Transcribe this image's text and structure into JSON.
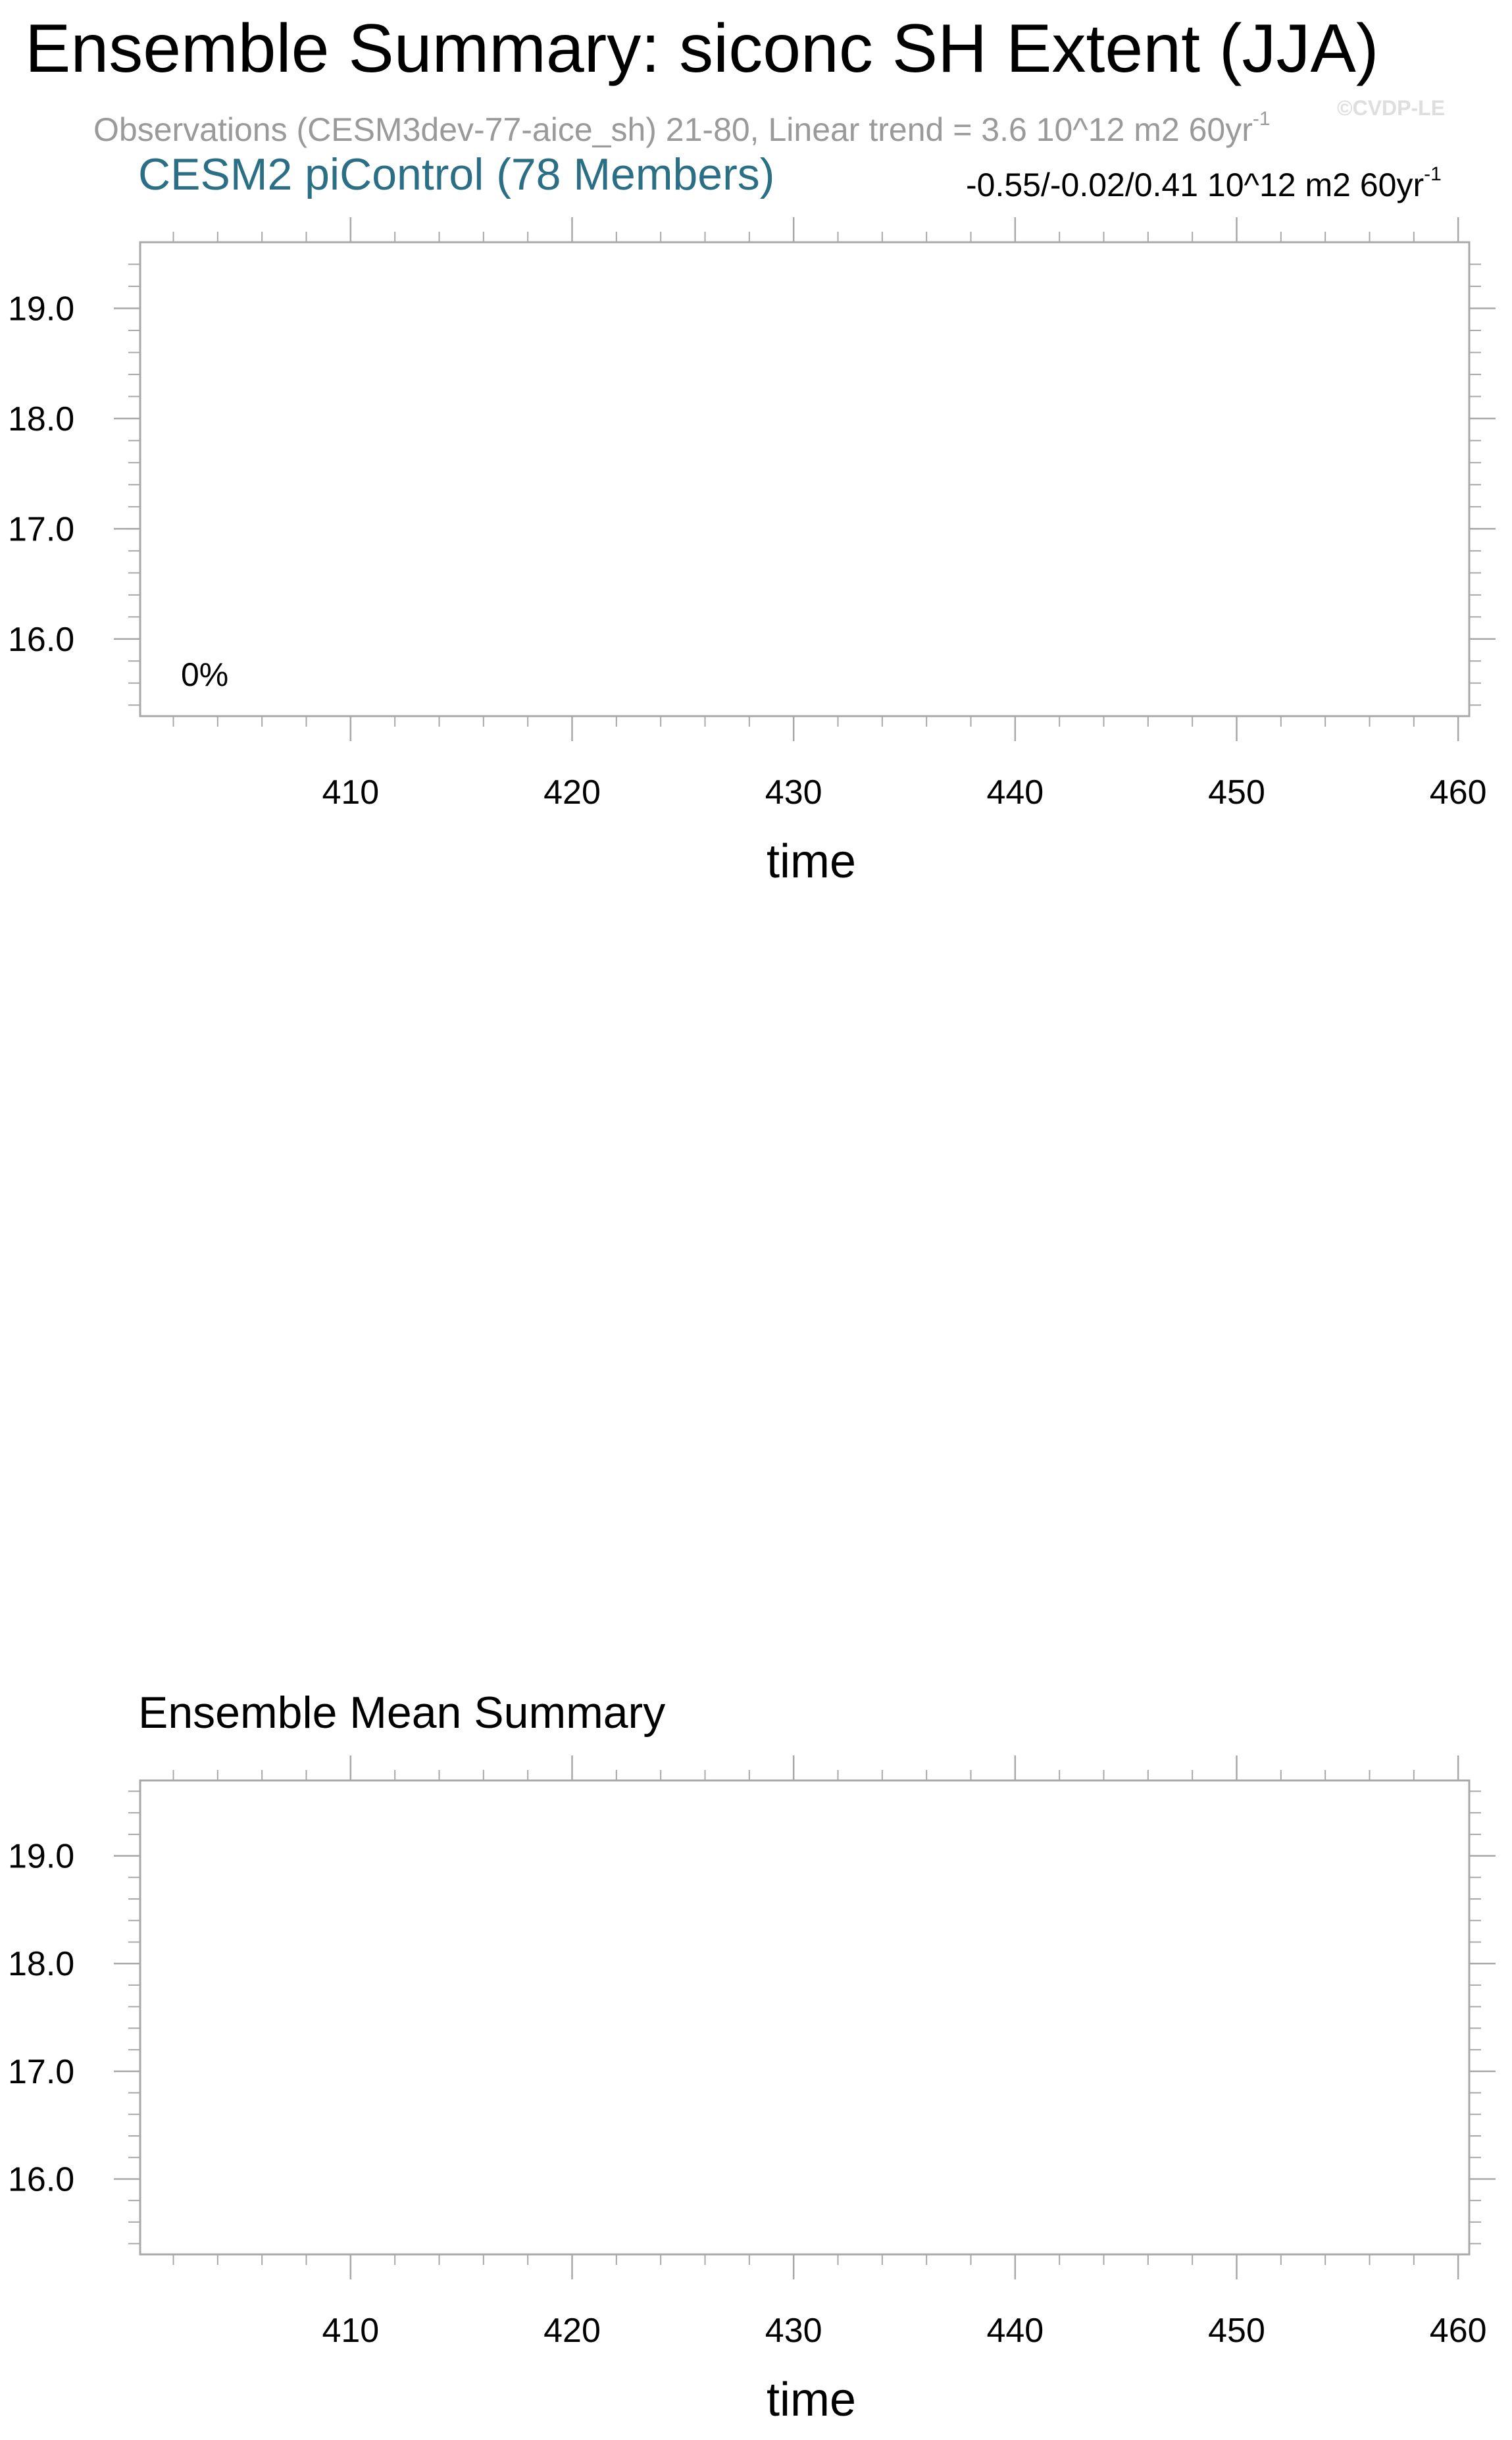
{
  "header": {
    "title": "Ensemble Summary: siconc SH Extent (JJA)",
    "subtitle": "Observations (CESM3dev-77-aice_sh) 21-80, Linear trend = 3.6 10^12 m2 60yr",
    "subtitle_sup": "-1",
    "watermark": "©CVDP-LE"
  },
  "chart_data": [
    {
      "type": "line",
      "title": "CESM2 piControl (78 Members)",
      "trend_text": "-0.55/-0.02/0.41 10^12 m2 60yr",
      "trend_sup": "-1",
      "percent_label": "0%",
      "xlabel": "time",
      "ylabel": "",
      "xlim": [
        400.5,
        460.5
      ],
      "ylim": [
        15.3,
        19.6
      ],
      "x_ticks": [
        410,
        420,
        430,
        440,
        450,
        460
      ],
      "x_tick_labels": [
        "410",
        "420",
        "430",
        "440",
        "450",
        "460"
      ],
      "y_ticks": [
        16.0,
        17.0,
        18.0,
        19.0
      ],
      "y_tick_labels": [
        "16.0",
        "17.0",
        "18.0",
        "19.0"
      ],
      "series": [],
      "grid": false
    },
    {
      "type": "line",
      "title": "Ensemble Mean Summary",
      "xlabel": "time",
      "ylabel": "",
      "xlim": [
        400.5,
        460.5
      ],
      "ylim": [
        15.3,
        19.7
      ],
      "x_ticks": [
        410,
        420,
        430,
        440,
        450,
        460
      ],
      "x_tick_labels": [
        "410",
        "420",
        "430",
        "440",
        "450",
        "460"
      ],
      "y_ticks": [
        16.0,
        17.0,
        18.0,
        19.0
      ],
      "y_tick_labels": [
        "16.0",
        "17.0",
        "18.0",
        "19.0"
      ],
      "series": [],
      "grid": false
    }
  ],
  "colors": {
    "title_accent": "#2a6f86",
    "subtitle": "#9a9a9a",
    "frame": "#a8a8a8"
  }
}
